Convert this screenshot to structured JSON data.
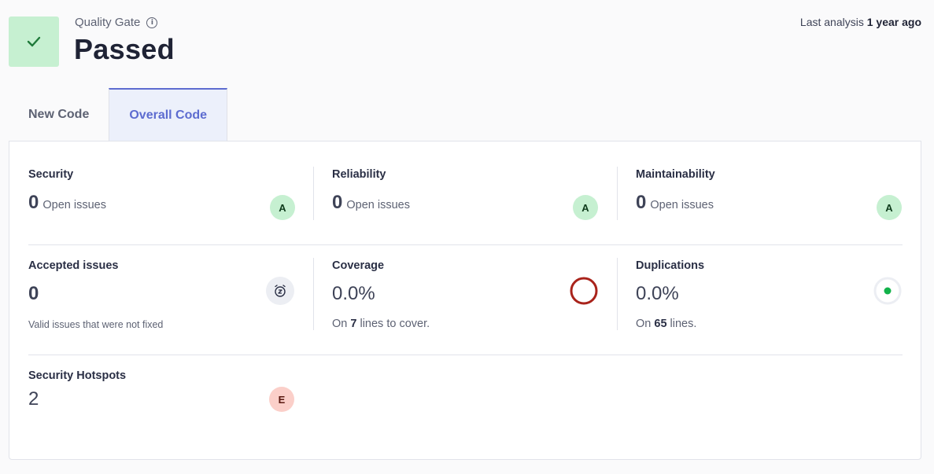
{
  "quality_gate": {
    "label": "Quality Gate",
    "status": "Passed",
    "info_icon": "info-icon",
    "status_icon": "check-icon",
    "status_color": "#1f7a3a"
  },
  "last_analysis": {
    "prefix": "Last analysis",
    "value": "1 year ago"
  },
  "tabs": [
    {
      "label": "New Code",
      "active": false
    },
    {
      "label": "Overall Code",
      "active": true
    }
  ],
  "metrics": {
    "security": {
      "title": "Security",
      "value": "0",
      "label": "Open issues",
      "rating": "A"
    },
    "reliability": {
      "title": "Reliability",
      "value": "0",
      "label": "Open issues",
      "rating": "A"
    },
    "maintainability": {
      "title": "Maintainability",
      "value": "0",
      "label": "Open issues",
      "rating": "A"
    },
    "accepted": {
      "title": "Accepted issues",
      "value": "0",
      "description": "Valid issues that were not fixed",
      "icon": "snooze-clock-icon"
    },
    "coverage": {
      "title": "Coverage",
      "value": "0.0%",
      "sub_prefix": "On",
      "sub_count": "7",
      "sub_suffix": "lines to cover.",
      "ring_color": "#a9231b"
    },
    "duplications": {
      "title": "Duplications",
      "value": "0.0%",
      "sub_prefix": "On",
      "sub_count": "65",
      "sub_suffix": "lines.",
      "dot_color": "#12b24a"
    },
    "hotspots": {
      "title": "Security Hotspots",
      "value": "2",
      "rating": "E"
    }
  }
}
